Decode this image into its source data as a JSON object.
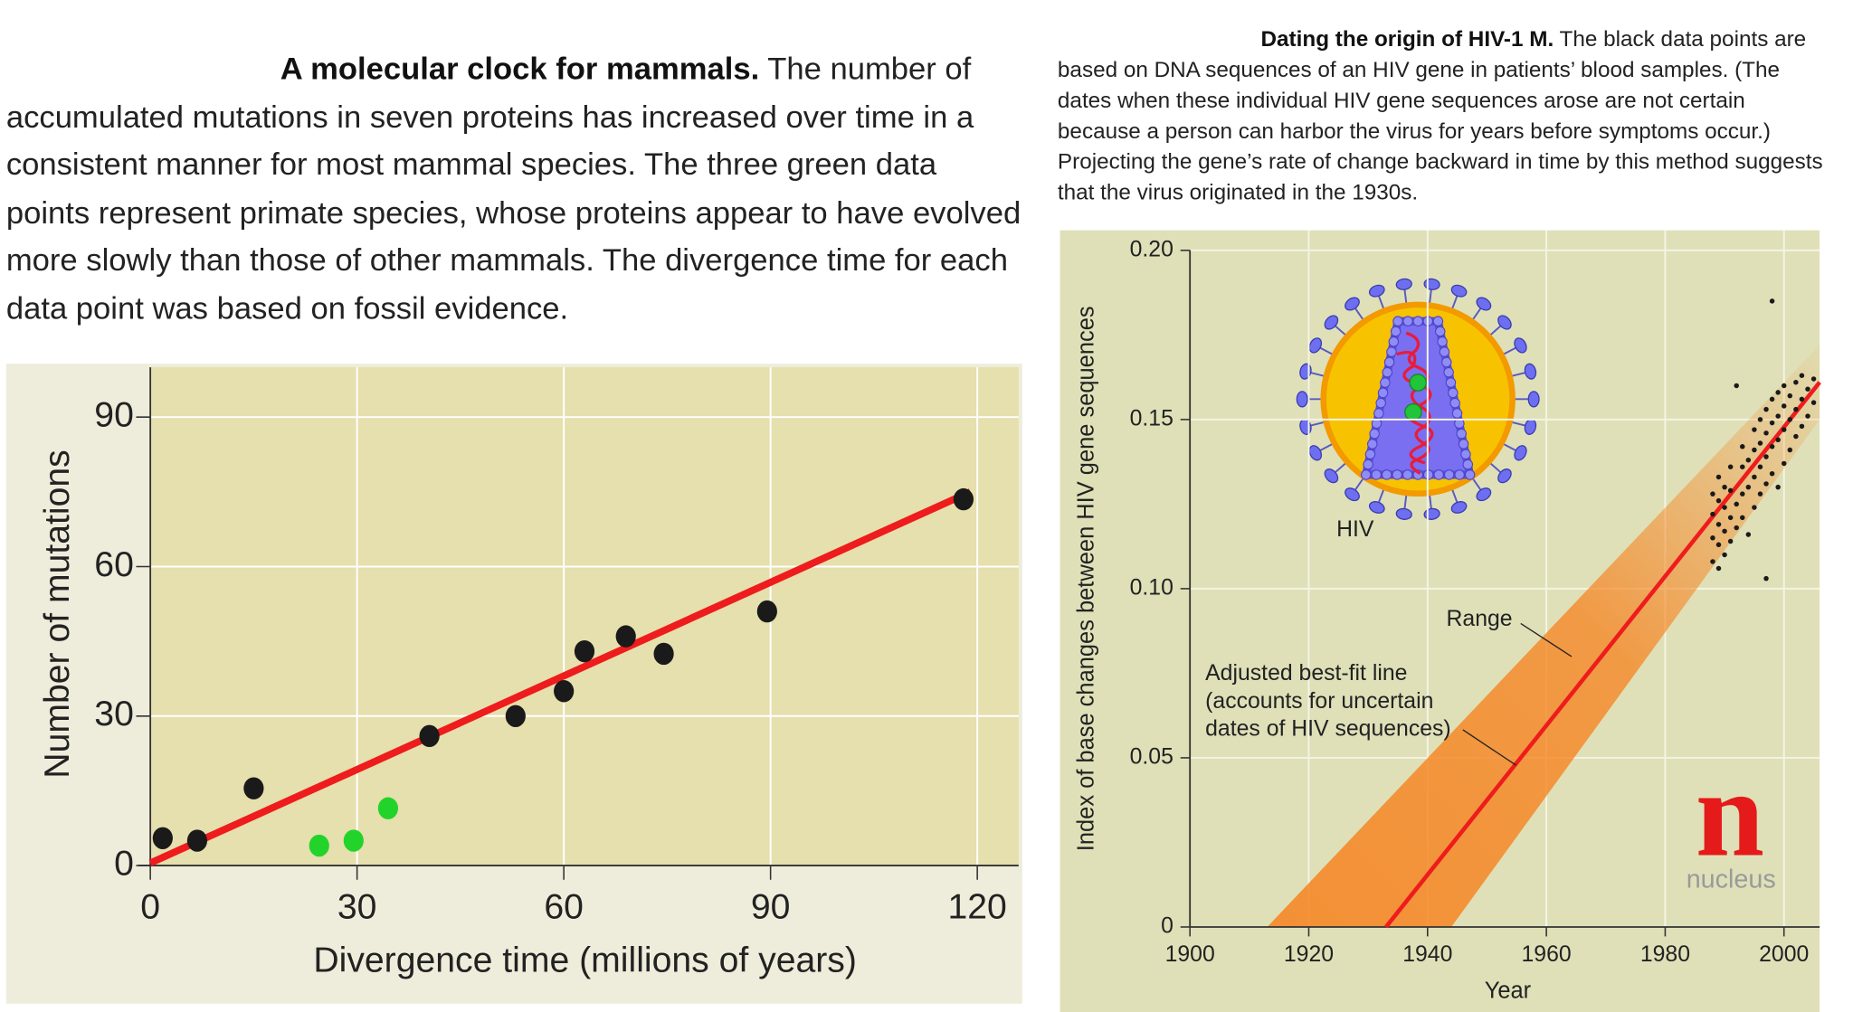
{
  "chart_data": [
    {
      "type": "scatter",
      "title": "A molecular clock for mammals.",
      "caption": "The number of accumulated mutations in seven proteins has increased over time in a consistent manner for most mammal species. The three green data points represent primate species, whose proteins appear to have evolved more slowly than those of other mammals. The divergence time for each data point was based on fossil evidence.",
      "x_label": "Divergence time (millions of years)",
      "y_label": "Number of mutations",
      "xlim": [
        0,
        126
      ],
      "ylim": [
        0,
        100
      ],
      "xticks": [
        0,
        30,
        60,
        90,
        120
      ],
      "yticks": [
        0,
        30,
        60,
        90
      ],
      "grid": true,
      "series": [
        {
          "color": "#1a1a1a",
          "x": [
            1.8,
            6.8,
            15,
            40.5,
            53,
            60,
            63,
            69,
            74.5,
            89.5,
            118
          ],
          "values": [
            5.5,
            5,
            15.5,
            26,
            30,
            35,
            43,
            46,
            42.5,
            51,
            73.5
          ]
        },
        {
          "color": "#22d32a",
          "x": [
            24.5,
            29.5,
            34.5
          ],
          "values": [
            4,
            5,
            11.5
          ]
        }
      ],
      "fit_line": {
        "color": "#ee1c1c",
        "x": [
          0,
          119
        ],
        "values": [
          0.5,
          75
        ]
      }
    },
    {
      "type": "scatter",
      "title": "Dating the origin of HIV-1 M.",
      "caption": "The black data points are based on DNA sequences of an HIV gene in patients’ blood samples. (The dates when these individual HIV gene sequences arose are not certain because a person can harbor the virus for years before symptoms occur.) Projecting the gene’s rate of change backward in time by this method suggests that the virus originated in the 1930s.",
      "x_label": "Year",
      "y_label": "Index of base changes between HIV gene sequences",
      "xlim": [
        1900,
        2006
      ],
      "ylim": [
        0,
        0.2
      ],
      "xticks": [
        1900,
        1920,
        1940,
        1960,
        1980,
        2000
      ],
      "yticks": [
        0,
        0.05,
        {
          "value": 0.1,
          "label": "0.10"
        },
        0.15,
        {
          "value": 0.2,
          "label": "0.20"
        }
      ],
      "grid": true,
      "series": [
        {
          "color": "#1a1a1a",
          "x": [
            1988,
            1988,
            1988,
            1988,
            1989,
            1989,
            1989,
            1989,
            1989,
            1990,
            1990,
            1990,
            1990,
            1991,
            1991,
            1991,
            1991,
            1992,
            1992,
            1992,
            1993,
            1993,
            1993,
            1993,
            1994,
            1994,
            1994,
            1995,
            1995,
            1995,
            1995,
            1996,
            1996,
            1996,
            1996,
            1997,
            1997,
            1997,
            1997,
            1997,
            1998,
            1998,
            1998,
            1998,
            1998,
            1999,
            1999,
            1999,
            1999,
            2000,
            2000,
            2000,
            2000,
            2001,
            2001,
            2001,
            2002,
            2002,
            2002,
            2003,
            2003,
            2003,
            2004,
            2004,
            2005,
            2005
          ],
          "values": [
            0.108,
            0.115,
            0.122,
            0.128,
            0.106,
            0.113,
            0.119,
            0.126,
            0.133,
            0.11,
            0.117,
            0.124,
            0.13,
            0.114,
            0.121,
            0.129,
            0.136,
            0.118,
            0.125,
            0.16,
            0.121,
            0.128,
            0.136,
            0.142,
            0.116,
            0.13,
            0.138,
            0.124,
            0.133,
            0.141,
            0.147,
            0.128,
            0.136,
            0.143,
            0.15,
            0.103,
            0.131,
            0.139,
            0.146,
            0.153,
            0.134,
            0.142,
            0.149,
            0.156,
            0.185,
            0.13,
            0.144,
            0.151,
            0.158,
            0.137,
            0.147,
            0.154,
            0.16,
            0.141,
            0.15,
            0.157,
            0.145,
            0.153,
            0.161,
            0.148,
            0.156,
            0.163,
            0.151,
            0.159,
            0.155,
            0.162
          ]
        }
      ],
      "fit_line": {
        "color": "#ee1c1c",
        "x": [
          1933,
          2006
        ],
        "values": [
          0,
          0.161
        ]
      },
      "range": {
        "color": "#f7821e",
        "x": [
          1913,
          1944,
          2006,
          2006
        ],
        "values": [
          0,
          0,
          0.15,
          0.172
        ]
      },
      "annotations": [
        {
          "text": "Range"
        },
        {
          "lines": [
            "Adjusted best-fit line",
            "(accounts for uncertain",
            "dates of HIV sequences)"
          ]
        },
        {
          "text": "HIV"
        }
      ],
      "logo": {
        "mark": "n",
        "text": "nucleus"
      }
    }
  ]
}
